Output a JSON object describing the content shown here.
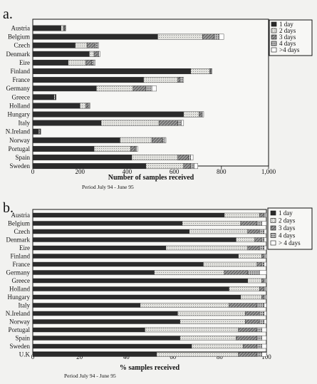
{
  "chart_data": [
    {
      "type": "bar",
      "orientation": "horizontal",
      "stacked": true,
      "panel_label": "a.",
      "categories": [
        "Austria",
        "Belgium",
        "Czech",
        "Denmark",
        "Eire",
        "Finland",
        "France",
        "Germany",
        "Greece",
        "Holland",
        "Hungary",
        "Italy",
        "N.Ireland",
        "Norway",
        "Portugal",
        "Spain",
        "Sweden"
      ],
      "series": [
        {
          "name": "1 day",
          "values": [
            120,
            530,
            180,
            240,
            150,
            670,
            470,
            270,
            90,
            200,
            640,
            290,
            25,
            370,
            260,
            420,
            480
          ]
        },
        {
          "name": "2 days",
          "values": [
            10,
            190,
            50,
            20,
            75,
            80,
            145,
            155,
            5,
            25,
            65,
            245,
            5,
            135,
            155,
            195,
            160
          ]
        },
        {
          "name": "3 days",
          "values": [
            5,
            50,
            35,
            15,
            25,
            5,
            10,
            55,
            2,
            10,
            10,
            80,
            2,
            45,
            20,
            45,
            30
          ]
        },
        {
          "name": "4 days",
          "values": [
            3,
            20,
            10,
            5,
            10,
            3,
            10,
            25,
            1,
            5,
            5,
            15,
            1,
            10,
            5,
            10,
            15
          ]
        },
        {
          "name": ">4 days",
          "values": [
            2,
            20,
            5,
            5,
            5,
            2,
            5,
            20,
            1,
            3,
            5,
            10,
            1,
            5,
            5,
            10,
            15
          ]
        }
      ],
      "xlabel": "Number of samples received",
      "xlim": [
        0,
        1000
      ],
      "xticks": [
        "0",
        "200",
        "400",
        "600",
        "800",
        "1,000"
      ],
      "note": "Period July 94 - June 95",
      "legend_position": "top-right"
    },
    {
      "type": "bar",
      "orientation": "horizontal",
      "stacked": true,
      "panel_label": "b.",
      "categories": [
        "Austria",
        "Belgium",
        "Czech",
        "Denmark",
        "Eire",
        "Finland",
        "France",
        "Germany",
        "Greece",
        "Holland",
        "Hungary",
        "Italy",
        "N.Ireland",
        "Norway",
        "Portugal",
        "Spain",
        "Sweden",
        "U.K"
      ],
      "series": [
        {
          "name": "1 day",
          "values": [
            82,
            64,
            67,
            87,
            57,
            88,
            73,
            52,
            92,
            84,
            89,
            46,
            62,
            63,
            48,
            63,
            68,
            53
          ]
        },
        {
          "name": "2 days",
          "values": [
            15,
            25,
            25,
            8,
            35,
            10,
            23,
            30,
            6,
            13,
            9,
            38,
            29,
            28,
            40,
            24,
            22,
            35
          ]
        },
        {
          "name": "3 days",
          "values": [
            2,
            7,
            5,
            3,
            5,
            1,
            2,
            10,
            1,
            2,
            1,
            12,
            6,
            6,
            8,
            9,
            6,
            8
          ]
        },
        {
          "name": "4 days",
          "values": [
            0.5,
            2,
            2,
            1,
            2,
            0.5,
            1,
            5,
            0.5,
            0.5,
            0.5,
            3,
            2,
            2,
            2,
            2,
            2,
            2
          ]
        },
        {
          "name": "> 4 days",
          "values": [
            0.5,
            2,
            1,
            1,
            1,
            0.5,
            1,
            3,
            0.5,
            0.5,
            0.5,
            1,
            1,
            1,
            2,
            2,
            2,
            2
          ]
        }
      ],
      "xlabel": "% samples received",
      "xlim": [
        0,
        100
      ],
      "xticks": [
        "0",
        "20",
        "40",
        "60",
        "80",
        "100"
      ],
      "note": "Period July 94 - June 95",
      "legend_position": "top-right"
    }
  ],
  "colors": {
    "1 day": "#2b2b2b",
    "2 days": "#dcdcd8",
    "3 days": "#8c8c8c",
    "4 days": "#b5b5b5",
    ">4 days": "#ffffff"
  }
}
